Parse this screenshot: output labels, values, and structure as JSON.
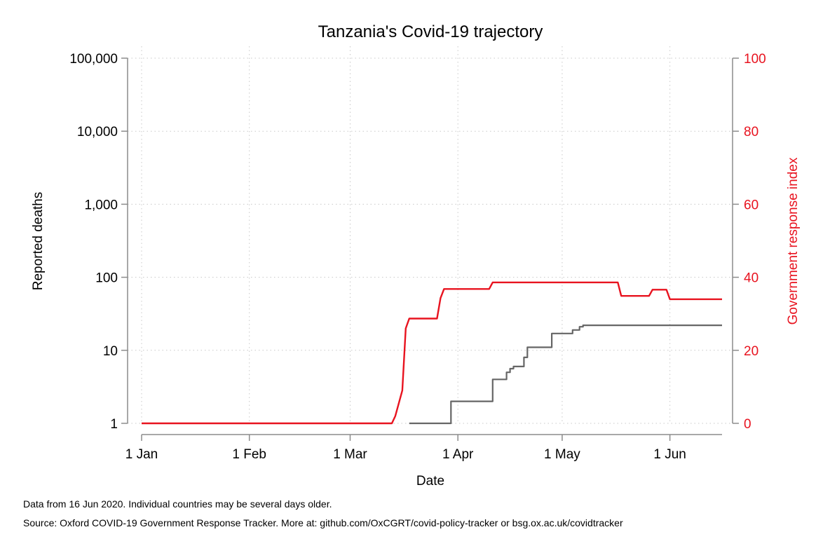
{
  "chart_data": {
    "type": "line",
    "title": "Tanzania's Covid-19 trajectory",
    "xlabel": "Date",
    "ylabel_left": "Reported deaths",
    "ylabel_right": "Government response index",
    "x_range": [
      "2020-01-01",
      "2020-06-16"
    ],
    "x_ticks": [
      {
        "date": "2020-01-01",
        "label": "1 Jan"
      },
      {
        "date": "2020-02-01",
        "label": "1 Feb"
      },
      {
        "date": "2020-03-01",
        "label": "1 Mar"
      },
      {
        "date": "2020-04-01",
        "label": "1 Apr"
      },
      {
        "date": "2020-05-01",
        "label": "1 May"
      },
      {
        "date": "2020-06-01",
        "label": "1 Jun"
      }
    ],
    "y_left": {
      "scale": "log",
      "range": [
        1,
        100000
      ],
      "ticks": [
        {
          "value": 1,
          "label": "1"
        },
        {
          "value": 10,
          "label": "10"
        },
        {
          "value": 100,
          "label": "100"
        },
        {
          "value": 1000,
          "label": "1,000"
        },
        {
          "value": 10000,
          "label": "10,000"
        },
        {
          "value": 100000,
          "label": "100,000"
        }
      ]
    },
    "y_right": {
      "scale": "linear",
      "range": [
        0,
        100
      ],
      "ticks": [
        {
          "value": 0,
          "label": "0"
        },
        {
          "value": 20,
          "label": "20"
        },
        {
          "value": 40,
          "label": "40"
        },
        {
          "value": 60,
          "label": "60"
        },
        {
          "value": 80,
          "label": "80"
        },
        {
          "value": 100,
          "label": "100"
        }
      ]
    },
    "grid": true,
    "series": [
      {
        "axis": "right",
        "color": "#e8131f",
        "step": false,
        "points": [
          [
            "2020-01-01",
            0
          ],
          [
            "2020-03-13",
            0
          ],
          [
            "2020-03-14",
            2
          ],
          [
            "2020-03-16",
            9
          ],
          [
            "2020-03-17",
            26
          ],
          [
            "2020-03-18",
            28.7
          ],
          [
            "2020-03-26",
            28.7
          ],
          [
            "2020-03-27",
            34.3
          ],
          [
            "2020-03-28",
            36.8
          ],
          [
            "2020-04-10",
            36.8
          ],
          [
            "2020-04-11",
            38.6
          ],
          [
            "2020-05-17",
            38.6
          ],
          [
            "2020-05-18",
            34.9
          ],
          [
            "2020-05-26",
            34.9
          ],
          [
            "2020-05-27",
            36.6
          ],
          [
            "2020-05-31",
            36.6
          ],
          [
            "2020-06-01",
            34.0
          ],
          [
            "2020-06-16",
            34.0
          ]
        ]
      },
      {
        "axis": "left",
        "color": "#666666",
        "step": true,
        "points": [
          [
            "2020-03-18",
            1
          ],
          [
            "2020-03-30",
            2
          ],
          [
            "2020-04-11",
            4
          ],
          [
            "2020-04-15",
            5
          ],
          [
            "2020-04-16",
            5.6
          ],
          [
            "2020-04-17",
            6
          ],
          [
            "2020-04-20",
            8
          ],
          [
            "2020-04-21",
            11
          ],
          [
            "2020-04-28",
            17
          ],
          [
            "2020-05-04",
            19
          ],
          [
            "2020-05-06",
            21
          ],
          [
            "2020-05-07",
            22
          ],
          [
            "2020-06-16",
            22
          ]
        ]
      }
    ]
  },
  "notes": {
    "line1": "Data from 16 Jun 2020. Individual countries may be several days older.",
    "line2": "Source: Oxford COVID-19 Government Response Tracker. More at: github.com/OxCGRT/covid-policy-tracker or bsg.ox.ac.uk/covidtracker"
  }
}
